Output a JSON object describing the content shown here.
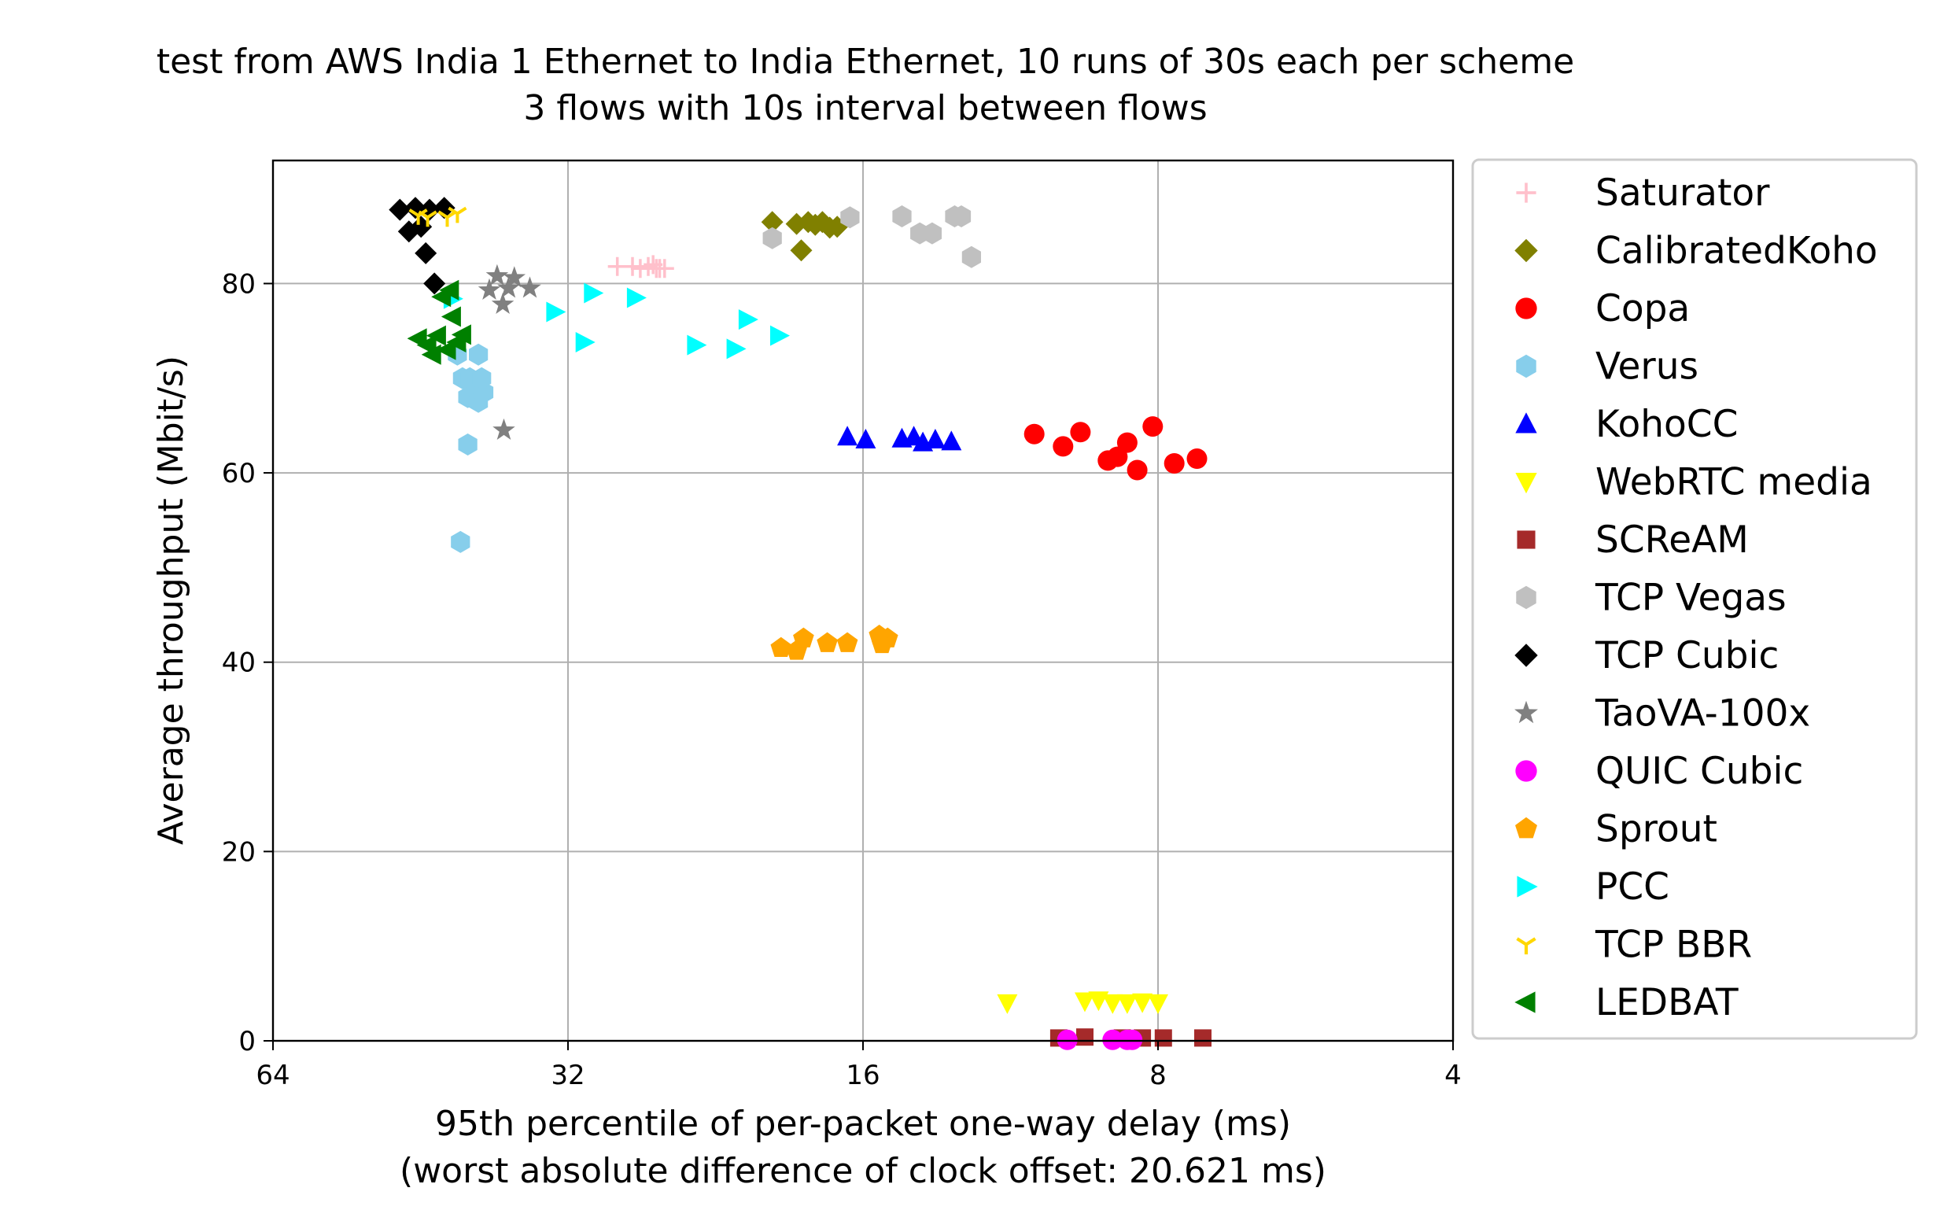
{
  "chart_data": {
    "type": "scatter",
    "title": "test from AWS India 1 Ethernet to India Ethernet, 10 runs of 30s each per scheme",
    "subtitle": "3 flows with 10s interval between flows",
    "xlabel": "95th percentile of per-packet one-way delay (ms)",
    "xlabel_line2": "(worst absolute difference of clock offset: 20.621 ms)",
    "ylabel": "Average throughput (Mbit/s)",
    "x_scale": "log2",
    "x_inverted": true,
    "xlim": [
      64,
      4
    ],
    "ylim": [
      0,
      93
    ],
    "x_ticks": [
      64,
      32,
      16,
      8,
      4
    ],
    "x_tick_labels": [
      "64",
      "32",
      "16",
      "8",
      "4"
    ],
    "y_ticks": [
      0,
      20,
      40,
      60,
      80
    ],
    "y_tick_labels": [
      "0",
      "20",
      "40",
      "60",
      "80"
    ],
    "grid": true,
    "legend_position": "outside-right",
    "series": [
      {
        "name": "Saturator",
        "marker": "plus",
        "color": "#ffc0cb",
        "points": [
          [
            28.5,
            81.8
          ],
          [
            27.5,
            81.8
          ],
          [
            27,
            81.6
          ],
          [
            26.5,
            81.8
          ],
          [
            26,
            81.6
          ],
          [
            25.8,
            81.6
          ],
          [
            26.2,
            82.0
          ],
          [
            25.5,
            81.6
          ]
        ]
      },
      {
        "name": "CalibratedKoho",
        "marker": "diamond",
        "color": "#808000",
        "points": [
          [
            19.8,
            86.5
          ],
          [
            18.5,
            83.5
          ],
          [
            18.2,
            86.5
          ],
          [
            17.9,
            86.2
          ],
          [
            17.6,
            86.5
          ],
          [
            17.3,
            85.9
          ],
          [
            17,
            86.0
          ],
          [
            18.7,
            86.3
          ]
        ]
      },
      {
        "name": "Copa",
        "marker": "circle",
        "color": "#ff0000",
        "points": [
          [
            10.7,
            64.1
          ],
          [
            10,
            62.8
          ],
          [
            9.6,
            64.3
          ],
          [
            9,
            61.3
          ],
          [
            8.8,
            61.7
          ],
          [
            8.6,
            63.2
          ],
          [
            8.4,
            60.3
          ],
          [
            8.1,
            64.9
          ],
          [
            7.7,
            61.0
          ],
          [
            7.3,
            61.5
          ]
        ]
      },
      {
        "name": "Verus",
        "marker": "hexagon",
        "color": "#87ceeb",
        "points": [
          [
            41.5,
            72.5
          ],
          [
            41,
            70.0
          ],
          [
            40.5,
            68.0
          ],
          [
            40,
            69.5
          ],
          [
            39.5,
            67.5
          ],
          [
            39,
            68.5
          ],
          [
            40.3,
            70.0
          ],
          [
            39.2,
            70.0
          ],
          [
            39.5,
            72.5
          ],
          [
            40.5,
            63.0
          ],
          [
            41.2,
            52.7
          ]
        ]
      },
      {
        "name": "KohoCC",
        "marker": "triangle-up",
        "color": "#0000ff",
        "points": [
          [
            16.6,
            63.8
          ],
          [
            15.9,
            63.5
          ],
          [
            14.6,
            63.6
          ],
          [
            14.2,
            63.8
          ],
          [
            13.9,
            63.2
          ],
          [
            13.5,
            63.5
          ],
          [
            13.0,
            63.3
          ]
        ]
      },
      {
        "name": "WebRTC media",
        "marker": "triangle-down",
        "color": "#ffff00",
        "points": [
          [
            11.4,
            4.0
          ],
          [
            9.5,
            4.2
          ],
          [
            9.2,
            4.3
          ],
          [
            8.9,
            4.0
          ],
          [
            8.6,
            4.0
          ],
          [
            8.3,
            4.1
          ],
          [
            8.0,
            4.0
          ]
        ]
      },
      {
        "name": "SCReAM",
        "marker": "square",
        "color": "#a52a2a",
        "points": [
          [
            10.1,
            0.3
          ],
          [
            9.5,
            0.4
          ],
          [
            8.7,
            0.3
          ],
          [
            8.3,
            0.3
          ],
          [
            7.9,
            0.3
          ],
          [
            7.2,
            0.3
          ]
        ]
      },
      {
        "name": "TCP Vegas",
        "marker": "hexagon",
        "color": "#c0c0c0",
        "points": [
          [
            19.8,
            84.8
          ],
          [
            16.5,
            87.0
          ],
          [
            14.6,
            87.1
          ],
          [
            14,
            85.3
          ],
          [
            13.6,
            85.3
          ],
          [
            12.9,
            87.1
          ],
          [
            12.7,
            87.1
          ],
          [
            12.4,
            82.8
          ]
        ]
      },
      {
        "name": "TCP Cubic",
        "marker": "diamond",
        "color": "#000000",
        "points": [
          [
            47.5,
            87.8
          ],
          [
            46.5,
            85.5
          ],
          [
            45.8,
            88.0
          ],
          [
            45.2,
            86.0
          ],
          [
            44.7,
            83.2
          ],
          [
            44.3,
            87.8
          ],
          [
            43.8,
            80.0
          ],
          [
            42.8,
            88.0
          ]
        ]
      },
      {
        "name": "TaoVA-100x",
        "marker": "star",
        "color": "#808080",
        "points": [
          [
            38.5,
            79.3
          ],
          [
            37.8,
            80.8
          ],
          [
            37.3,
            77.8
          ],
          [
            36.8,
            79.5
          ],
          [
            36.3,
            80.6
          ],
          [
            35,
            79.5
          ],
          [
            37.2,
            64.5
          ]
        ]
      },
      {
        "name": "QUIC Cubic",
        "marker": "circle",
        "color": "#ff00ff",
        "points": [
          [
            9.9,
            0.1
          ],
          [
            8.9,
            0.1
          ],
          [
            8.6,
            0.1
          ],
          [
            8.5,
            0.1
          ]
        ]
      },
      {
        "name": "Sprout",
        "marker": "pentagon",
        "color": "#ffa500",
        "points": [
          [
            19.4,
            41.5
          ],
          [
            18.7,
            41.2
          ],
          [
            18.4,
            42.5
          ],
          [
            17.4,
            42.0
          ],
          [
            16.6,
            42.0
          ],
          [
            15.4,
            42.8
          ],
          [
            15.1,
            42.5
          ],
          [
            15.3,
            41.9
          ]
        ]
      },
      {
        "name": "PCC",
        "marker": "triangle-right",
        "color": "#00ffff",
        "points": [
          [
            42,
            78.4
          ],
          [
            33,
            77.0
          ],
          [
            30.2,
            79.0
          ],
          [
            30.8,
            73.8
          ],
          [
            27.3,
            78.5
          ],
          [
            23.7,
            73.5
          ],
          [
            21.6,
            73.1
          ],
          [
            21.0,
            76.2
          ],
          [
            19.5,
            74.5
          ]
        ]
      },
      {
        "name": "TCP BBR",
        "marker": "tri-down",
        "color": "#ffd700",
        "points": [
          [
            45.5,
            87.2
          ],
          [
            44.5,
            87.0
          ],
          [
            42.5,
            87.0
          ],
          [
            41.5,
            87.4
          ]
        ]
      },
      {
        "name": "LEDBAT",
        "marker": "triangle-left",
        "color": "#008000",
        "points": [
          [
            45.5,
            74.2
          ],
          [
            44.5,
            73.5
          ],
          [
            44,
            72.5
          ],
          [
            43.5,
            74.5
          ],
          [
            42.5,
            73.0
          ],
          [
            41.5,
            73.8
          ],
          [
            41,
            74.6
          ],
          [
            42,
            76.5
          ],
          [
            42.2,
            79.3
          ],
          [
            43,
            78.6
          ]
        ]
      }
    ]
  }
}
